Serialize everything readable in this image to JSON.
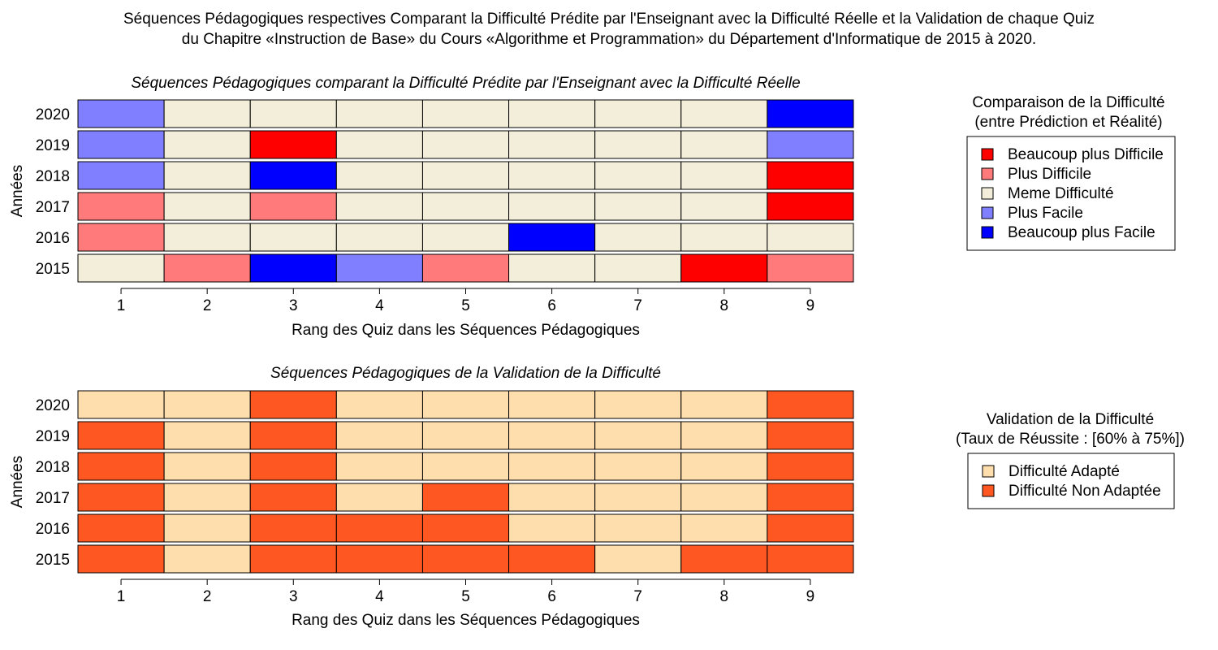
{
  "title": [
    "Séquences Pédagogiques respectives Comparant la Difficulté Prédite par l'Enseignant avec la Difficulté Réelle et la Validation de chaque Quiz",
    "du Chapitre «Instruction de Base» du Cours «Algorithme et Programmation» du Département d'Informatique de 2015 à 2020."
  ],
  "chart_data": [
    {
      "type": "heatmap",
      "title": "Séquences Pédagogiques comparant la Difficulté Prédite par l'Enseignant avec la Difficulté Réelle",
      "xlabel": "Rang des Quiz dans les Séquences Pédagogiques",
      "ylabel": "Années",
      "x": [
        "1",
        "2",
        "3",
        "4",
        "5",
        "6",
        "7",
        "8",
        "9"
      ],
      "grid": false,
      "legend": {
        "position": "right",
        "title": [
          "Comparaison de la Difficulté",
          "(entre Prédiction et Réalité)"
        ],
        "items": [
          {
            "label": "Beaucoup plus Difficile",
            "color": "#FF0000"
          },
          {
            "label": "Plus Difficile",
            "color": "#FF7A7A"
          },
          {
            "label": "Meme Difficulté",
            "color": "#F3EED9"
          },
          {
            "label": "Plus Facile",
            "color": "#7F7FFF"
          },
          {
            "label": "Beaucoup plus Facile",
            "color": "#0000FF"
          }
        ]
      },
      "rows": [
        {
          "year": "2020",
          "states": [
            "Plus Facile",
            "Meme Difficulté",
            "Meme Difficulté",
            "Meme Difficulté",
            "Meme Difficulté",
            "Meme Difficulté",
            "Meme Difficulté",
            "Meme Difficulté",
            "Beaucoup plus Facile"
          ]
        },
        {
          "year": "2019",
          "states": [
            "Plus Facile",
            "Meme Difficulté",
            "Beaucoup plus Difficile",
            "Meme Difficulté",
            "Meme Difficulté",
            "Meme Difficulté",
            "Meme Difficulté",
            "Meme Difficulté",
            "Plus Facile"
          ]
        },
        {
          "year": "2018",
          "states": [
            "Plus Facile",
            "Meme Difficulté",
            "Beaucoup plus Facile",
            "Meme Difficulté",
            "Meme Difficulté",
            "Meme Difficulté",
            "Meme Difficulté",
            "Meme Difficulté",
            "Beaucoup plus Difficile"
          ]
        },
        {
          "year": "2017",
          "states": [
            "Plus Difficile",
            "Meme Difficulté",
            "Plus Difficile",
            "Meme Difficulté",
            "Meme Difficulté",
            "Meme Difficulté",
            "Meme Difficulté",
            "Meme Difficulté",
            "Beaucoup plus Difficile"
          ]
        },
        {
          "year": "2016",
          "states": [
            "Plus Difficile",
            "Meme Difficulté",
            "Meme Difficulté",
            "Meme Difficulté",
            "Meme Difficulté",
            "Beaucoup plus Facile",
            "Meme Difficulté",
            "Meme Difficulté",
            "Meme Difficulté"
          ]
        },
        {
          "year": "2015",
          "states": [
            "Meme Difficulté",
            "Plus Difficile",
            "Beaucoup plus Facile",
            "Plus Facile",
            "Plus Difficile",
            "Meme Difficulté",
            "Meme Difficulté",
            "Beaucoup plus Difficile",
            "Plus Difficile"
          ]
        }
      ]
    },
    {
      "type": "heatmap",
      "title": "Séquences Pédagogiques de la Validation de la Difficulté",
      "xlabel": "Rang des Quiz dans les Séquences Pédagogiques",
      "ylabel": "Années",
      "x": [
        "1",
        "2",
        "3",
        "4",
        "5",
        "6",
        "7",
        "8",
        "9"
      ],
      "grid": false,
      "legend": {
        "position": "right",
        "title": [
          "Validation de la Difficulté",
          "(Taux de Réussite : [60% à 75%])"
        ],
        "items": [
          {
            "label": "Difficulté Adapté",
            "color": "#FFDEAD"
          },
          {
            "label": "Difficulté Non Adaptée",
            "color": "#FF5722"
          }
        ]
      },
      "rows": [
        {
          "year": "2020",
          "states": [
            "Difficulté Adapté",
            "Difficulté Adapté",
            "Difficulté Non Adaptée",
            "Difficulté Adapté",
            "Difficulté Adapté",
            "Difficulté Adapté",
            "Difficulté Adapté",
            "Difficulté Adapté",
            "Difficulté Non Adaptée"
          ]
        },
        {
          "year": "2019",
          "states": [
            "Difficulté Non Adaptée",
            "Difficulté Adapté",
            "Difficulté Non Adaptée",
            "Difficulté Adapté",
            "Difficulté Adapté",
            "Difficulté Adapté",
            "Difficulté Adapté",
            "Difficulté Adapté",
            "Difficulté Non Adaptée"
          ]
        },
        {
          "year": "2018",
          "states": [
            "Difficulté Non Adaptée",
            "Difficulté Adapté",
            "Difficulté Non Adaptée",
            "Difficulté Adapté",
            "Difficulté Adapté",
            "Difficulté Adapté",
            "Difficulté Adapté",
            "Difficulté Adapté",
            "Difficulté Non Adaptée"
          ]
        },
        {
          "year": "2017",
          "states": [
            "Difficulté Non Adaptée",
            "Difficulté Adapté",
            "Difficulté Non Adaptée",
            "Difficulté Adapté",
            "Difficulté Non Adaptée",
            "Difficulté Adapté",
            "Difficulté Adapté",
            "Difficulté Adapté",
            "Difficulté Non Adaptée"
          ]
        },
        {
          "year": "2016",
          "states": [
            "Difficulté Non Adaptée",
            "Difficulté Adapté",
            "Difficulté Non Adaptée",
            "Difficulté Non Adaptée",
            "Difficulté Non Adaptée",
            "Difficulté Adapté",
            "Difficulté Adapté",
            "Difficulté Adapté",
            "Difficulté Non Adaptée"
          ]
        },
        {
          "year": "2015",
          "states": [
            "Difficulté Non Adaptée",
            "Difficulté Adapté",
            "Difficulté Non Adaptée",
            "Difficulté Non Adaptée",
            "Difficulté Non Adaptée",
            "Difficulté Non Adaptée",
            "Difficulté Adapté",
            "Difficulté Non Adaptée",
            "Difficulté Non Adaptée"
          ]
        }
      ]
    }
  ]
}
